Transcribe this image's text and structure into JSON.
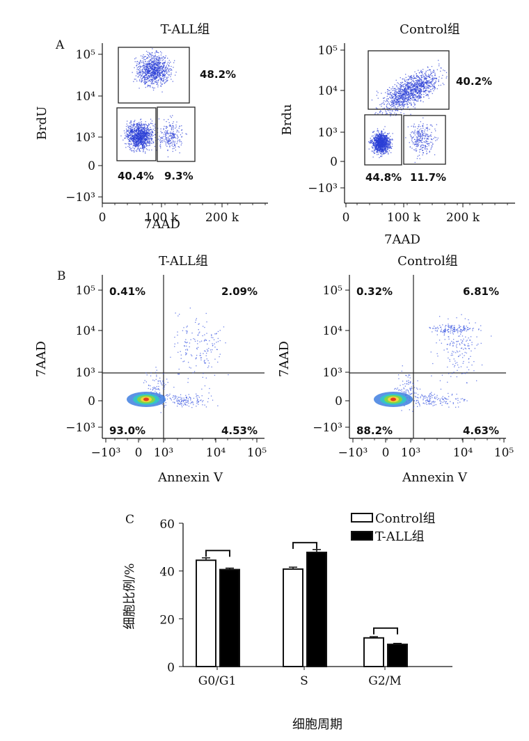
{
  "panels": {
    "A": "A",
    "B": "B",
    "C": "C"
  },
  "chart_data": [
    {
      "type": "scatter",
      "panel": "A",
      "title": "T-ALL组",
      "xlabel": "7AAD",
      "ylabel": "BrdU",
      "x_ticks": [
        "0",
        "100 k",
        "200 k"
      ],
      "y_ticks": [
        "10⁵",
        "10⁴",
        "10³",
        "0",
        "−10³"
      ],
      "gates": [
        {
          "label": "48.2%",
          "value": 48.2
        },
        {
          "label": "40.4%",
          "value": 40.4
        },
        {
          "label": "9.3%",
          "value": 9.3
        }
      ],
      "dot_color": "#2b3fd6"
    },
    {
      "type": "scatter",
      "panel": "A",
      "title": "Control组",
      "xlabel": "7AAD",
      "ylabel": "Brdu",
      "x_ticks": [
        "0",
        "100 k",
        "200 k"
      ],
      "y_ticks": [
        "10⁵",
        "10⁴",
        "10³",
        "0",
        "−10³"
      ],
      "gates": [
        {
          "label": "40.2%",
          "value": 40.2
        },
        {
          "label": "44.8%",
          "value": 44.8
        },
        {
          "label": "11.7%",
          "value": 11.7
        }
      ],
      "dot_color": "#2b3fd6"
    },
    {
      "type": "scatter",
      "panel": "B",
      "title": "T-ALL组",
      "xlabel": "Annexin V",
      "ylabel": "7AAD",
      "x_ticks": [
        "−10³",
        "0",
        "10³",
        "10⁴",
        "10⁵"
      ],
      "y_ticks": [
        "10⁵",
        "10⁴",
        "10³",
        "0",
        "−10³"
      ],
      "quadrants": [
        {
          "label": "0.41%",
          "value": 0.41
        },
        {
          "label": "2.09%",
          "value": 2.09
        },
        {
          "label": "93.0%",
          "value": 93.0
        },
        {
          "label": "4.53%",
          "value": 4.53
        }
      ],
      "dot_color": "#3a55e0"
    },
    {
      "type": "scatter",
      "panel": "B",
      "title": "Control组",
      "xlabel": "Annexin V",
      "ylabel": "7AAD",
      "x_ticks": [
        "−10³",
        "0",
        "10³",
        "10⁴",
        "10⁵"
      ],
      "y_ticks": [
        "10⁵",
        "10⁴",
        "10³",
        "0",
        "−10³"
      ],
      "quadrants": [
        {
          "label": "0.32%",
          "value": 0.32
        },
        {
          "label": "6.81%",
          "value": 6.81
        },
        {
          "label": "88.2%",
          "value": 88.2
        },
        {
          "label": "4.63%",
          "value": 4.63
        }
      ],
      "dot_color": "#3a55e0"
    },
    {
      "type": "bar",
      "panel": "C",
      "xlabel": "细胞周期",
      "ylabel": "细胞比例/%",
      "categories": [
        "G0/G1",
        "S",
        "G2/M"
      ],
      "ylim": [
        0,
        60
      ],
      "y_ticks": [
        0,
        20,
        40,
        60
      ],
      "legend": "top-right",
      "series": [
        {
          "name": "Control组",
          "values": [
            44.5,
            40.8,
            12.0
          ],
          "errors": [
            1.0,
            0.8,
            0.5
          ],
          "color": "#ffffff"
        },
        {
          "name": "T-ALL组",
          "values": [
            40.6,
            47.8,
            9.3
          ],
          "errors": [
            0.6,
            1.2,
            0.4
          ],
          "color": "#000000"
        }
      ],
      "significance_brackets": [
        "G0/G1",
        "S",
        "G2/M"
      ]
    }
  ]
}
